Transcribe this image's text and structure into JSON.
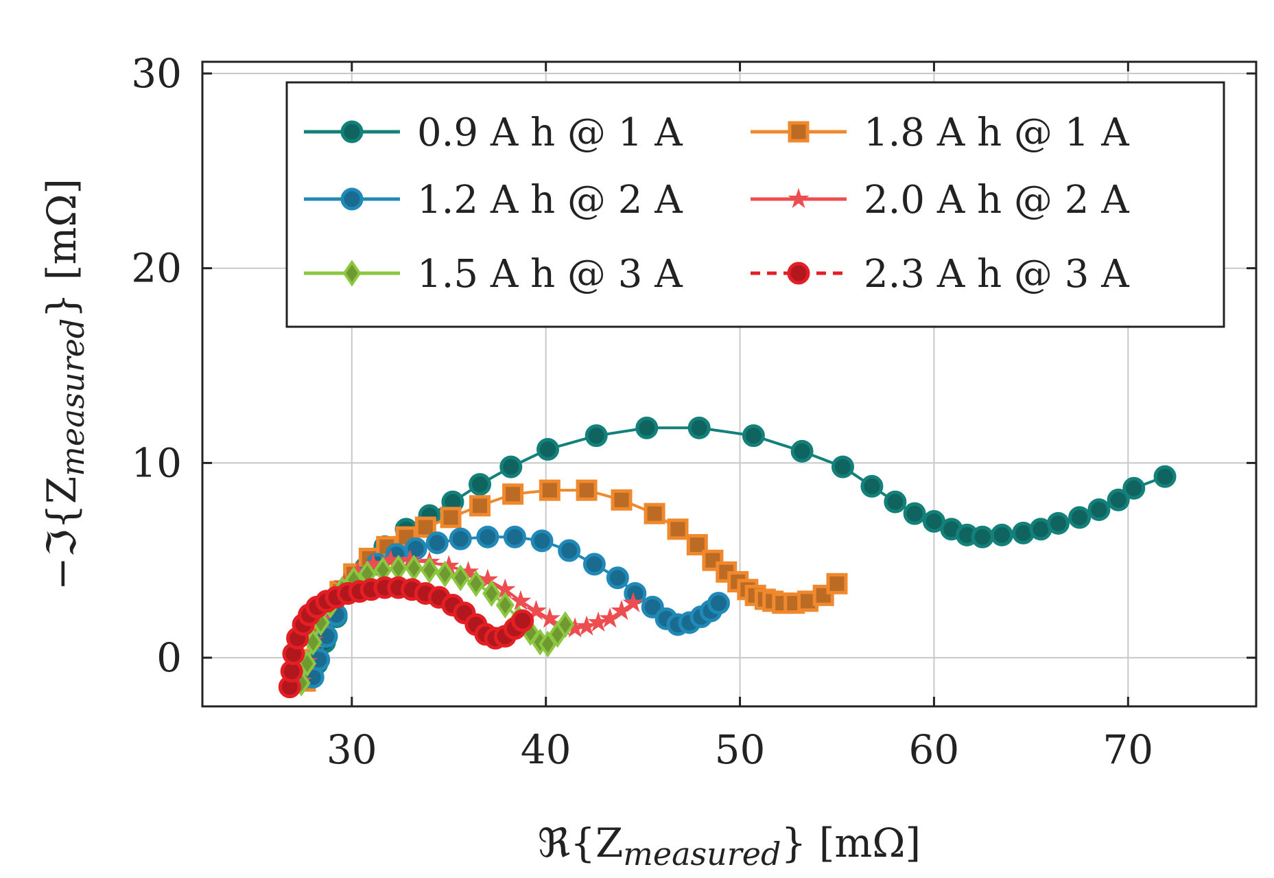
{
  "chart_data": {
    "type": "scatter",
    "title": "",
    "xlabel": "ℜ{Z_measured} [mΩ]",
    "xlabel_parts": {
      "pre": "ℜ{Z",
      "sub": "measured",
      "post": "} [mΩ]"
    },
    "ylabel": "−ℑ{Z_measured} [mΩ]",
    "ylabel_parts": {
      "pre": "−ℑ{Z",
      "sub": "measured",
      "post": "} [mΩ]"
    },
    "xlim": [
      22.3,
      76.6
    ],
    "ylim": [
      -2.5,
      30.6
    ],
    "xticks": [
      30,
      40,
      50,
      60,
      70
    ],
    "yticks": [
      0,
      10,
      20,
      30
    ],
    "xtick_labels": [
      "30",
      "40",
      "50",
      "60",
      "70"
    ],
    "ytick_labels": [
      "0",
      "10",
      "20",
      "30"
    ],
    "grid": true,
    "legend_position": "top-right",
    "series": [
      {
        "name": "0.9 A h @ 1 A",
        "color": "#13807A",
        "marker": "circle",
        "line": "solid",
        "x": [
          27.8,
          28.2,
          28.6,
          29.2,
          29.9,
          30.7,
          31.7,
          32.8,
          34.0,
          35.2,
          36.6,
          38.2,
          40.1,
          42.6,
          45.2,
          47.9,
          50.7,
          53.2,
          55.3,
          56.8,
          58.0,
          59.0,
          60.0,
          60.9,
          61.7,
          62.5,
          63.5,
          64.6,
          65.5,
          66.4,
          67.5,
          68.5,
          69.5,
          70.3,
          71.9
        ],
        "y": [
          -1.0,
          -0.3,
          0.8,
          2.1,
          3.4,
          4.6,
          5.7,
          6.6,
          7.3,
          8.0,
          8.9,
          9.8,
          10.7,
          11.4,
          11.8,
          11.8,
          11.4,
          10.6,
          9.8,
          8.8,
          8.0,
          7.4,
          7.0,
          6.6,
          6.3,
          6.2,
          6.3,
          6.4,
          6.6,
          6.9,
          7.2,
          7.6,
          8.1,
          8.7,
          9.3
        ]
      },
      {
        "name": "1.8 A h @ 1 A",
        "color": "#F0892D",
        "marker": "square",
        "line": "solid",
        "x": [
          27.6,
          27.9,
          28.3,
          28.8,
          29.4,
          30.1,
          30.9,
          31.8,
          32.8,
          33.8,
          35.1,
          36.6,
          38.3,
          40.2,
          42.1,
          43.9,
          45.6,
          46.8,
          47.8,
          48.6,
          49.3,
          49.9,
          50.4,
          50.8,
          51.3,
          51.7,
          52.2,
          52.8,
          53.5,
          54.3,
          55.0
        ],
        "y": [
          -1.2,
          -0.1,
          1.1,
          2.3,
          3.4,
          4.3,
          5.1,
          5.7,
          6.2,
          6.7,
          7.2,
          7.8,
          8.4,
          8.6,
          8.6,
          8.1,
          7.4,
          6.6,
          5.8,
          5.0,
          4.4,
          3.9,
          3.5,
          3.2,
          3.0,
          2.9,
          2.8,
          2.8,
          2.9,
          3.2,
          3.8
        ]
      },
      {
        "name": "1.2 A h @ 2 A",
        "color": "#2089B7",
        "marker": "circle",
        "line": "solid",
        "x": [
          28.0,
          28.3,
          28.7,
          29.2,
          29.8,
          30.5,
          31.3,
          32.3,
          33.3,
          34.4,
          35.6,
          37.0,
          38.4,
          39.8,
          41.2,
          42.5,
          43.7,
          44.6,
          45.5,
          46.2,
          46.8,
          47.4,
          48.0,
          48.5,
          48.9
        ],
        "y": [
          -1.0,
          -0.1,
          1.1,
          2.2,
          3.3,
          4.1,
          4.8,
          5.3,
          5.6,
          5.9,
          6.1,
          6.2,
          6.2,
          6.0,
          5.5,
          4.8,
          4.1,
          3.3,
          2.6,
          2.0,
          1.7,
          1.8,
          2.1,
          2.4,
          2.8
        ]
      },
      {
        "name": "2.0 A h @ 2 A",
        "color": "#EE4D50",
        "marker": "star",
        "line": "solid",
        "x": [
          27.4,
          27.7,
          28.0,
          28.5,
          29.0,
          29.6,
          30.3,
          31.1,
          32.0,
          33.0,
          34.0,
          35.0,
          36.0,
          37.0,
          37.9,
          38.7,
          39.5,
          40.2,
          40.9,
          41.5,
          42.1,
          42.7,
          43.3,
          43.9,
          44.5
        ],
        "y": [
          -1.2,
          -0.2,
          0.9,
          2.0,
          3.0,
          3.8,
          4.4,
          4.8,
          5.0,
          5.0,
          4.9,
          4.7,
          4.4,
          4.0,
          3.5,
          2.9,
          2.4,
          2.0,
          1.6,
          1.5,
          1.6,
          1.8,
          2.0,
          2.4,
          2.8
        ]
      },
      {
        "name": "1.5 A h @ 3 A",
        "color": "#8DC63F",
        "marker": "diamond",
        "line": "solid",
        "x": [
          27.4,
          27.7,
          28.0,
          28.4,
          28.9,
          29.5,
          30.1,
          30.8,
          31.6,
          32.4,
          33.2,
          34.0,
          34.8,
          35.6,
          36.4,
          37.2,
          37.9,
          38.6,
          39.2,
          39.7,
          40.1,
          40.6,
          41.0
        ],
        "y": [
          -1.3,
          -0.3,
          0.8,
          1.8,
          2.7,
          3.5,
          4.0,
          4.3,
          4.5,
          4.6,
          4.6,
          4.5,
          4.3,
          4.1,
          3.8,
          3.3,
          2.7,
          2.0,
          1.3,
          0.8,
          0.7,
          1.2,
          1.7
        ]
      },
      {
        "name": "2.3 A h @ 3 A",
        "color": "#E31E24",
        "marker": "circle",
        "line": "dashed",
        "x": [
          26.8,
          26.9,
          27.0,
          27.2,
          27.5,
          27.8,
          28.2,
          28.7,
          29.2,
          29.8,
          30.4,
          31.0,
          31.7,
          32.4,
          33.1,
          33.8,
          34.5,
          35.2,
          35.8,
          36.4,
          36.9,
          37.4,
          37.9,
          38.4,
          38.8
        ],
        "y": [
          -1.5,
          -0.7,
          0.2,
          1.0,
          1.7,
          2.2,
          2.6,
          2.9,
          3.1,
          3.3,
          3.4,
          3.5,
          3.6,
          3.6,
          3.5,
          3.3,
          3.1,
          2.7,
          2.3,
          1.7,
          1.2,
          1.0,
          1.1,
          1.5,
          1.9
        ]
      }
    ]
  }
}
